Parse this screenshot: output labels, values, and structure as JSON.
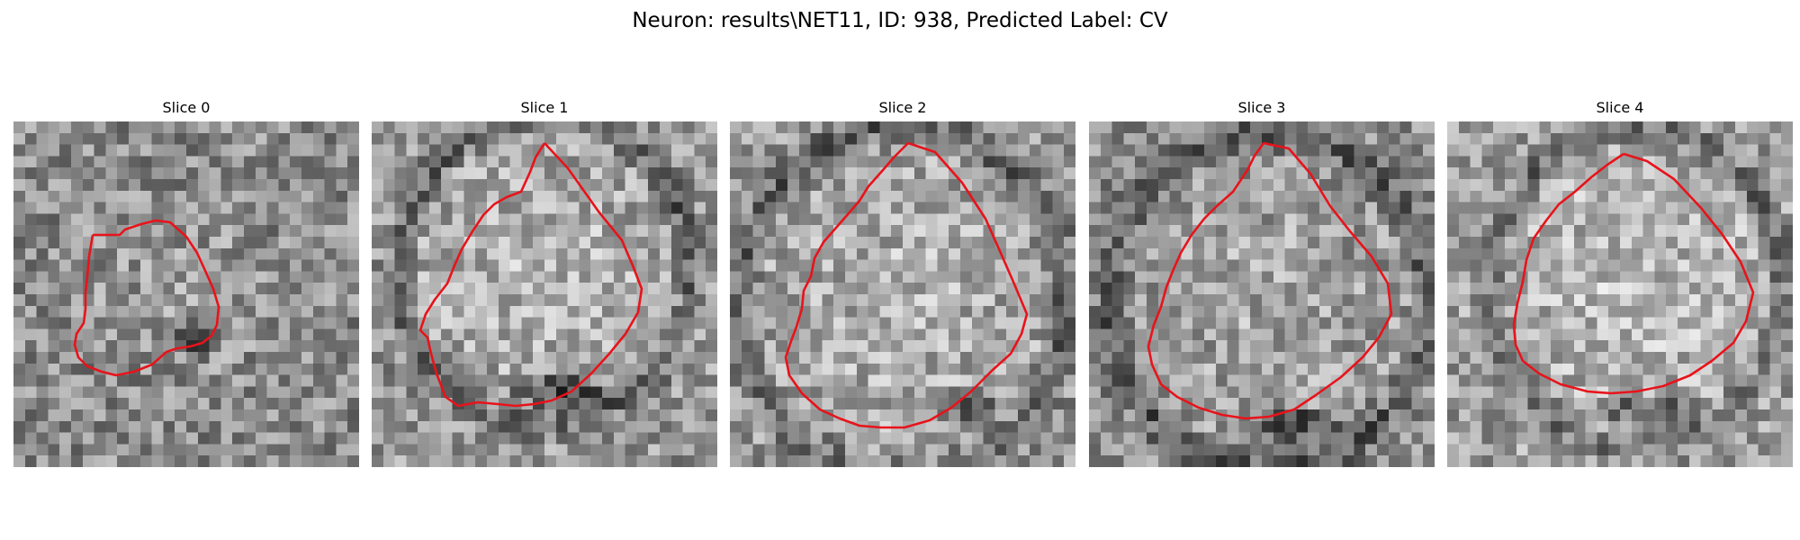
{
  "figure": {
    "title": "Neuron: results\\NET11, ID: 938, Predicted Label: CV"
  },
  "panels": [
    {
      "title": "Slice 0"
    },
    {
      "title": "Slice 1"
    },
    {
      "title": "Slice 2"
    },
    {
      "title": "Slice 3"
    },
    {
      "title": "Slice 4"
    }
  ],
  "colors": {
    "contour": "#e8131b",
    "background": "#ffffff"
  }
}
